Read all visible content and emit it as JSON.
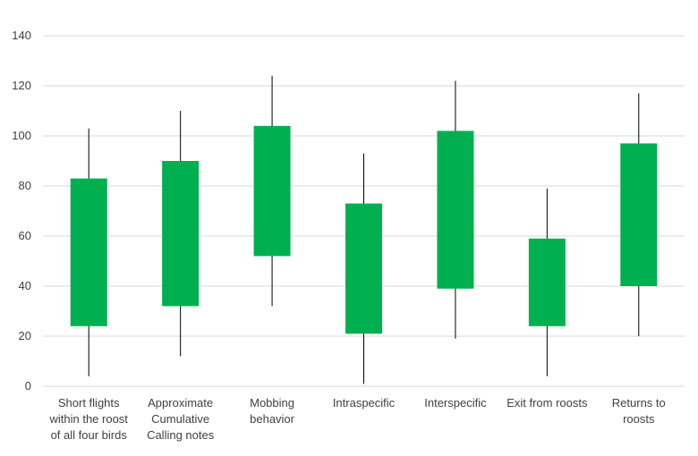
{
  "chart_data": {
    "type": "bar",
    "subtype": "floating-range-with-whiskers",
    "title": "",
    "xlabel": "",
    "ylabel": "",
    "ylim": [
      0,
      140
    ],
    "yticks": [
      0,
      20,
      40,
      60,
      80,
      100,
      120,
      140
    ],
    "grid": true,
    "legend": "none",
    "colors": {
      "bar": "#00b050",
      "whisker": "#000000",
      "grid": "#d9d9d9",
      "text": "#404040"
    },
    "categories": [
      [
        "Short flights",
        "within the roost",
        "of all four birds"
      ],
      [
        "Approximate",
        "Cumulative",
        "Calling notes"
      ],
      [
        "Mobbing",
        "behavior"
      ],
      [
        "Intraspecific"
      ],
      [
        "Interspecific"
      ],
      [
        "Exit from roosts"
      ],
      [
        "Returns to",
        "roosts"
      ]
    ],
    "bars": [
      {
        "low": 24,
        "high": 83,
        "whisker_low": 4,
        "whisker_high": 103
      },
      {
        "low": 32,
        "high": 90,
        "whisker_low": 12,
        "whisker_high": 110
      },
      {
        "low": 52,
        "high": 104,
        "whisker_low": 32,
        "whisker_high": 124
      },
      {
        "low": 21,
        "high": 73,
        "whisker_low": 1,
        "whisker_high": 93
      },
      {
        "low": 39,
        "high": 102,
        "whisker_low": 19,
        "whisker_high": 122
      },
      {
        "low": 24,
        "high": 59,
        "whisker_low": 4,
        "whisker_high": 79
      },
      {
        "low": 40,
        "high": 97,
        "whisker_low": 20,
        "whisker_high": 117
      }
    ]
  }
}
